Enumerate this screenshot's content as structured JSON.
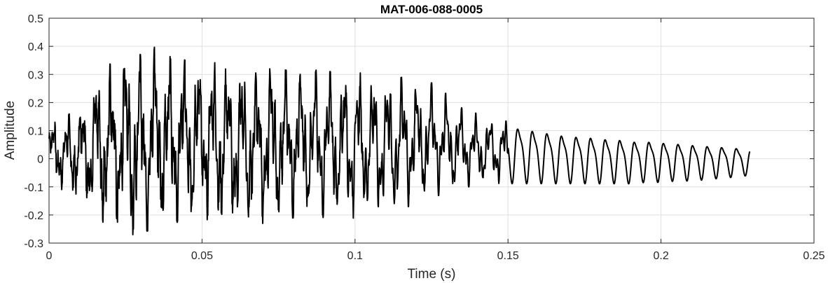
{
  "chart_data": {
    "type": "line",
    "title": "MAT-006-088-0005",
    "xlabel": "Time (s)",
    "ylabel": "Amplitude",
    "xlim": [
      0,
      0.25
    ],
    "ylim": [
      -0.3,
      0.5
    ],
    "xticks": [
      "0",
      "0.05",
      "0.1",
      "0.15",
      "0.2",
      "0.25"
    ],
    "yticks": [
      "-0.3",
      "-0.2",
      "-0.1",
      "0",
      "0.1",
      "0.2",
      "0.3",
      "0.4",
      "0.5"
    ],
    "grid": true,
    "line_color": "#000000",
    "series": [
      {
        "x": [
          0,
          0.005,
          0.01,
          0.015,
          0.02,
          0.025,
          0.03,
          0.035,
          0.04,
          0.045,
          0.05,
          0.055,
          0.06,
          0.065,
          0.07,
          0.075,
          0.08,
          0.085,
          0.09,
          0.095,
          0.1,
          0.105,
          0.11,
          0.115,
          0.12,
          0.125,
          0.13,
          0.135,
          0.14,
          0.145,
          0.15,
          0.155,
          0.16,
          0.165,
          0.17,
          0.175,
          0.18,
          0.185,
          0.19,
          0.195,
          0.2,
          0.205,
          0.21,
          0.215,
          0.22,
          0.225,
          0.229
        ],
        "upper_envelope": [
          0.13,
          0.14,
          0.2,
          0.26,
          0.35,
          0.39,
          0.37,
          0.4,
          0.36,
          0.35,
          0.35,
          0.34,
          0.33,
          0.32,
          0.32,
          0.32,
          0.31,
          0.32,
          0.31,
          0.31,
          0.31,
          0.3,
          0.29,
          0.29,
          0.28,
          0.27,
          0.23,
          0.18,
          0.16,
          0.15,
          0.14,
          0.13,
          0.12,
          0.11,
          0.1,
          0.1,
          0.09,
          0.09,
          0.08,
          0.08,
          0.075,
          0.07,
          0.065,
          0.06,
          0.055,
          0.05,
          0.045
        ],
        "lower_envelope": [
          -0.06,
          -0.12,
          -0.14,
          -0.2,
          -0.25,
          -0.27,
          -0.27,
          -0.24,
          -0.23,
          -0.22,
          -0.21,
          -0.23,
          -0.24,
          -0.23,
          -0.23,
          -0.22,
          -0.21,
          -0.2,
          -0.21,
          -0.22,
          -0.21,
          -0.2,
          -0.2,
          -0.18,
          -0.16,
          -0.14,
          -0.12,
          -0.1,
          -0.1,
          -0.09,
          -0.09,
          -0.09,
          -0.09,
          -0.09,
          -0.09,
          -0.09,
          -0.09,
          -0.09,
          -0.09,
          -0.085,
          -0.085,
          -0.08,
          -0.08,
          -0.075,
          -0.07,
          -0.065,
          -0.06
        ]
      }
    ]
  }
}
